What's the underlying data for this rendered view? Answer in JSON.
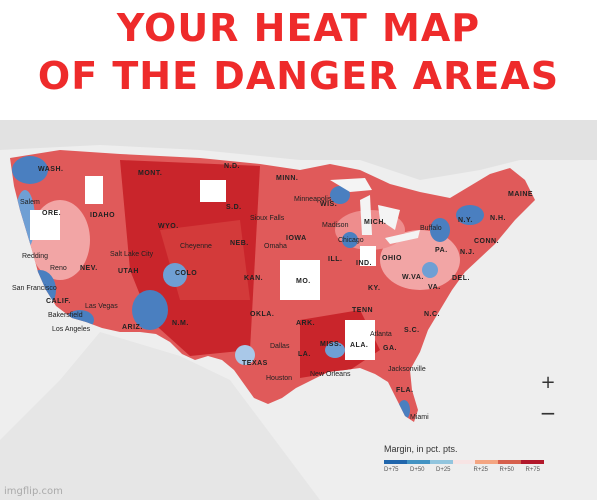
{
  "headline": {
    "line1": "YOUR HEAT MAP",
    "line2": "OF THE DANGER AREAS"
  },
  "states": [
    "WASH.",
    "MONT.",
    "N.D.",
    "MINN.",
    "ORE.",
    "IDAHO",
    "WYO.",
    "S.D.",
    "WIS.",
    "MICH.",
    "N.Y.",
    "N.H.",
    "MAINE",
    "IOWA",
    "NEB.",
    "NEV.",
    "UTAH",
    "COLO",
    "KAN.",
    "ILL.",
    "IND.",
    "OHIO",
    "PA.",
    "N.J.",
    "CONN.",
    "MO.",
    "KY.",
    "W.VA.",
    "VA.",
    "DEL.",
    "CALIF.",
    "ARIZ.",
    "N.M.",
    "OKLA.",
    "ARK.",
    "TENN",
    "N.C.",
    "S.C.",
    "TEXAS",
    "LA.",
    "MISS.",
    "ALA.",
    "GA.",
    "FLA."
  ],
  "cities": [
    "Salem",
    "Minneapolis",
    "Sioux Falls",
    "Madison",
    "Buffalo",
    "Chicago",
    "Cheyenne",
    "Omaha",
    "Redding",
    "Reno",
    "Salt Lake City",
    "San Francisco",
    "Las Vegas",
    "Bakersfield",
    "Los Angeles",
    "Dallas",
    "Houston",
    "New Orleans",
    "Atlanta",
    "Jacksonville",
    "Miami"
  ],
  "controls": {
    "zoom_in": "+",
    "zoom_out": "−"
  },
  "legend": {
    "title": "Margin, in pct. pts.",
    "ticks": [
      "D+75",
      "D+50",
      "D+25",
      "",
      "R+25",
      "R+50",
      "R+75"
    ],
    "colors": [
      "#2166ac",
      "#4393c3",
      "#92c5de",
      "#f7e4e4",
      "#f4a582",
      "#d6604d",
      "#b2182b"
    ]
  },
  "colors": {
    "headline": "#ee2b2b",
    "strong_red": "#c9252b",
    "mid_red": "#e05a5a",
    "light_red": "#f2a5a5",
    "blue": "#4a7fc0",
    "light_blue": "#a9c8e8"
  },
  "watermark": "imgflip.com"
}
